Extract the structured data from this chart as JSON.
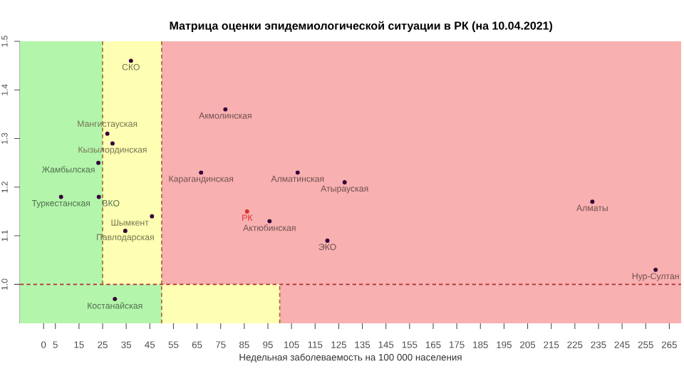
{
  "chart_data": {
    "type": "scatter",
    "title": "Матрица оценки эпидемиологической ситуации в РК (на 10.04.2021)",
    "xlabel": "Недельная заболеваемость на 100 000 населения",
    "x": [
      37,
      77,
      27,
      29.2,
      23.2,
      66.7,
      107.6,
      127.5,
      7.4,
      23.4,
      45.9,
      34.6,
      86.2,
      95.7,
      120.2,
      30.2,
      232.4,
      259.2
    ],
    "values": [
      1.46,
      1.36,
      1.31,
      1.29,
      1.25,
      1.23,
      1.23,
      1.21,
      1.18,
      1.18,
      1.14,
      1.11,
      1.15,
      1.13,
      1.09,
      0.97,
      1.17,
      1.03
    ],
    "colors": [
      "#33003a",
      "#33003a",
      "#33003a",
      "#33003a",
      "#33003a",
      "#33003a",
      "#33003a",
      "#33003a",
      "#33003a",
      "#33003a",
      "#33003a",
      "#33003a",
      "#e03030",
      "#33003a",
      "#33003a",
      "#33003a",
      "#33003a",
      "#33003a"
    ],
    "grid": false,
    "annotations": [
      {
        "text": "СКО",
        "x": 37,
        "y": 1.46
      },
      {
        "text": "Акмолинская",
        "x": 77,
        "y": 1.36
      },
      {
        "text": "Мангистауская",
        "x": 27,
        "y": 1.31
      },
      {
        "text": "Кызылординская",
        "x": 29.2,
        "y": 1.29
      },
      {
        "text": "Жамбылская",
        "x": 23.2,
        "y": 1.25
      },
      {
        "text": "Карагандинская",
        "x": 66.7,
        "y": 1.23
      },
      {
        "text": "Алматинская",
        "x": 107.6,
        "y": 1.23
      },
      {
        "text": "Атырауская",
        "x": 127.5,
        "y": 1.21
      },
      {
        "text": "Туркестанская",
        "x": 7.4,
        "y": 1.18
      },
      {
        "text": "ВКО",
        "x": 23.4,
        "y": 1.18
      },
      {
        "text": "Шымкент",
        "x": 45.9,
        "y": 1.14
      },
      {
        "text": "Павлодарская",
        "x": 34.6,
        "y": 1.11
      },
      {
        "text": "РК",
        "x": 86.2,
        "y": 1.15
      },
      {
        "text": "Актюбинская",
        "x": 95.7,
        "y": 1.13
      },
      {
        "text": "ЭКО",
        "x": 120.2,
        "y": 1.09
      },
      {
        "text": "Костанайская",
        "x": 30.2,
        "y": 0.97
      },
      {
        "text": "Алматы",
        "x": 232.4,
        "y": 1.17
      },
      {
        "text": "Нур-Султан",
        "x": 259.2,
        "y": 1.03
      }
    ],
    "bands": [
      {
        "axis": "x",
        "from": -10,
        "to": 25,
        "color": "#b4f5ac"
      },
      {
        "axis": "x",
        "from": 25,
        "to": 50,
        "color": "#ffffb3"
      },
      {
        "axis": "x",
        "from": 50,
        "to": 270,
        "color": "#f8b0b0"
      },
      {
        "axis": "x",
        "from": -10,
        "to": 50,
        "color": "#b4f5ac"
      },
      {
        "axis": "x",
        "from": 50,
        "to": 100,
        "color": "#ffffb3"
      },
      {
        "axis": "x",
        "from": 100,
        "to": 270,
        "color": "#f8b0b0"
      }
    ],
    "ref_lines": [
      {
        "axis": "y",
        "value": 1,
        "color": "#b03030",
        "line_style": "dashed"
      },
      {
        "axis": "x",
        "value": 25,
        "color": "#9a6a30",
        "line_style": "dashed"
      },
      {
        "axis": "x",
        "value": 50,
        "color": "#9a6a30",
        "line_style": "dashed"
      },
      {
        "axis": "x",
        "value": 100,
        "color": "#9a6a30",
        "line_style": "dashed"
      }
    ],
    "xlim": [
      -10,
      270
    ],
    "ylim": [
      0.92,
      1.5
    ],
    "xticks": [
      0,
      5,
      15,
      25,
      35,
      45,
      55,
      65,
      75,
      85,
      95,
      105,
      115,
      125,
      135,
      145,
      155,
      165,
      175,
      185,
      195,
      205,
      215,
      225,
      235,
      245,
      255,
      265
    ],
    "yticks": [
      {
        "value": 1,
        "label": "1.0"
      },
      1.1,
      1.2,
      1.3,
      1.4,
      1.5
    ]
  }
}
